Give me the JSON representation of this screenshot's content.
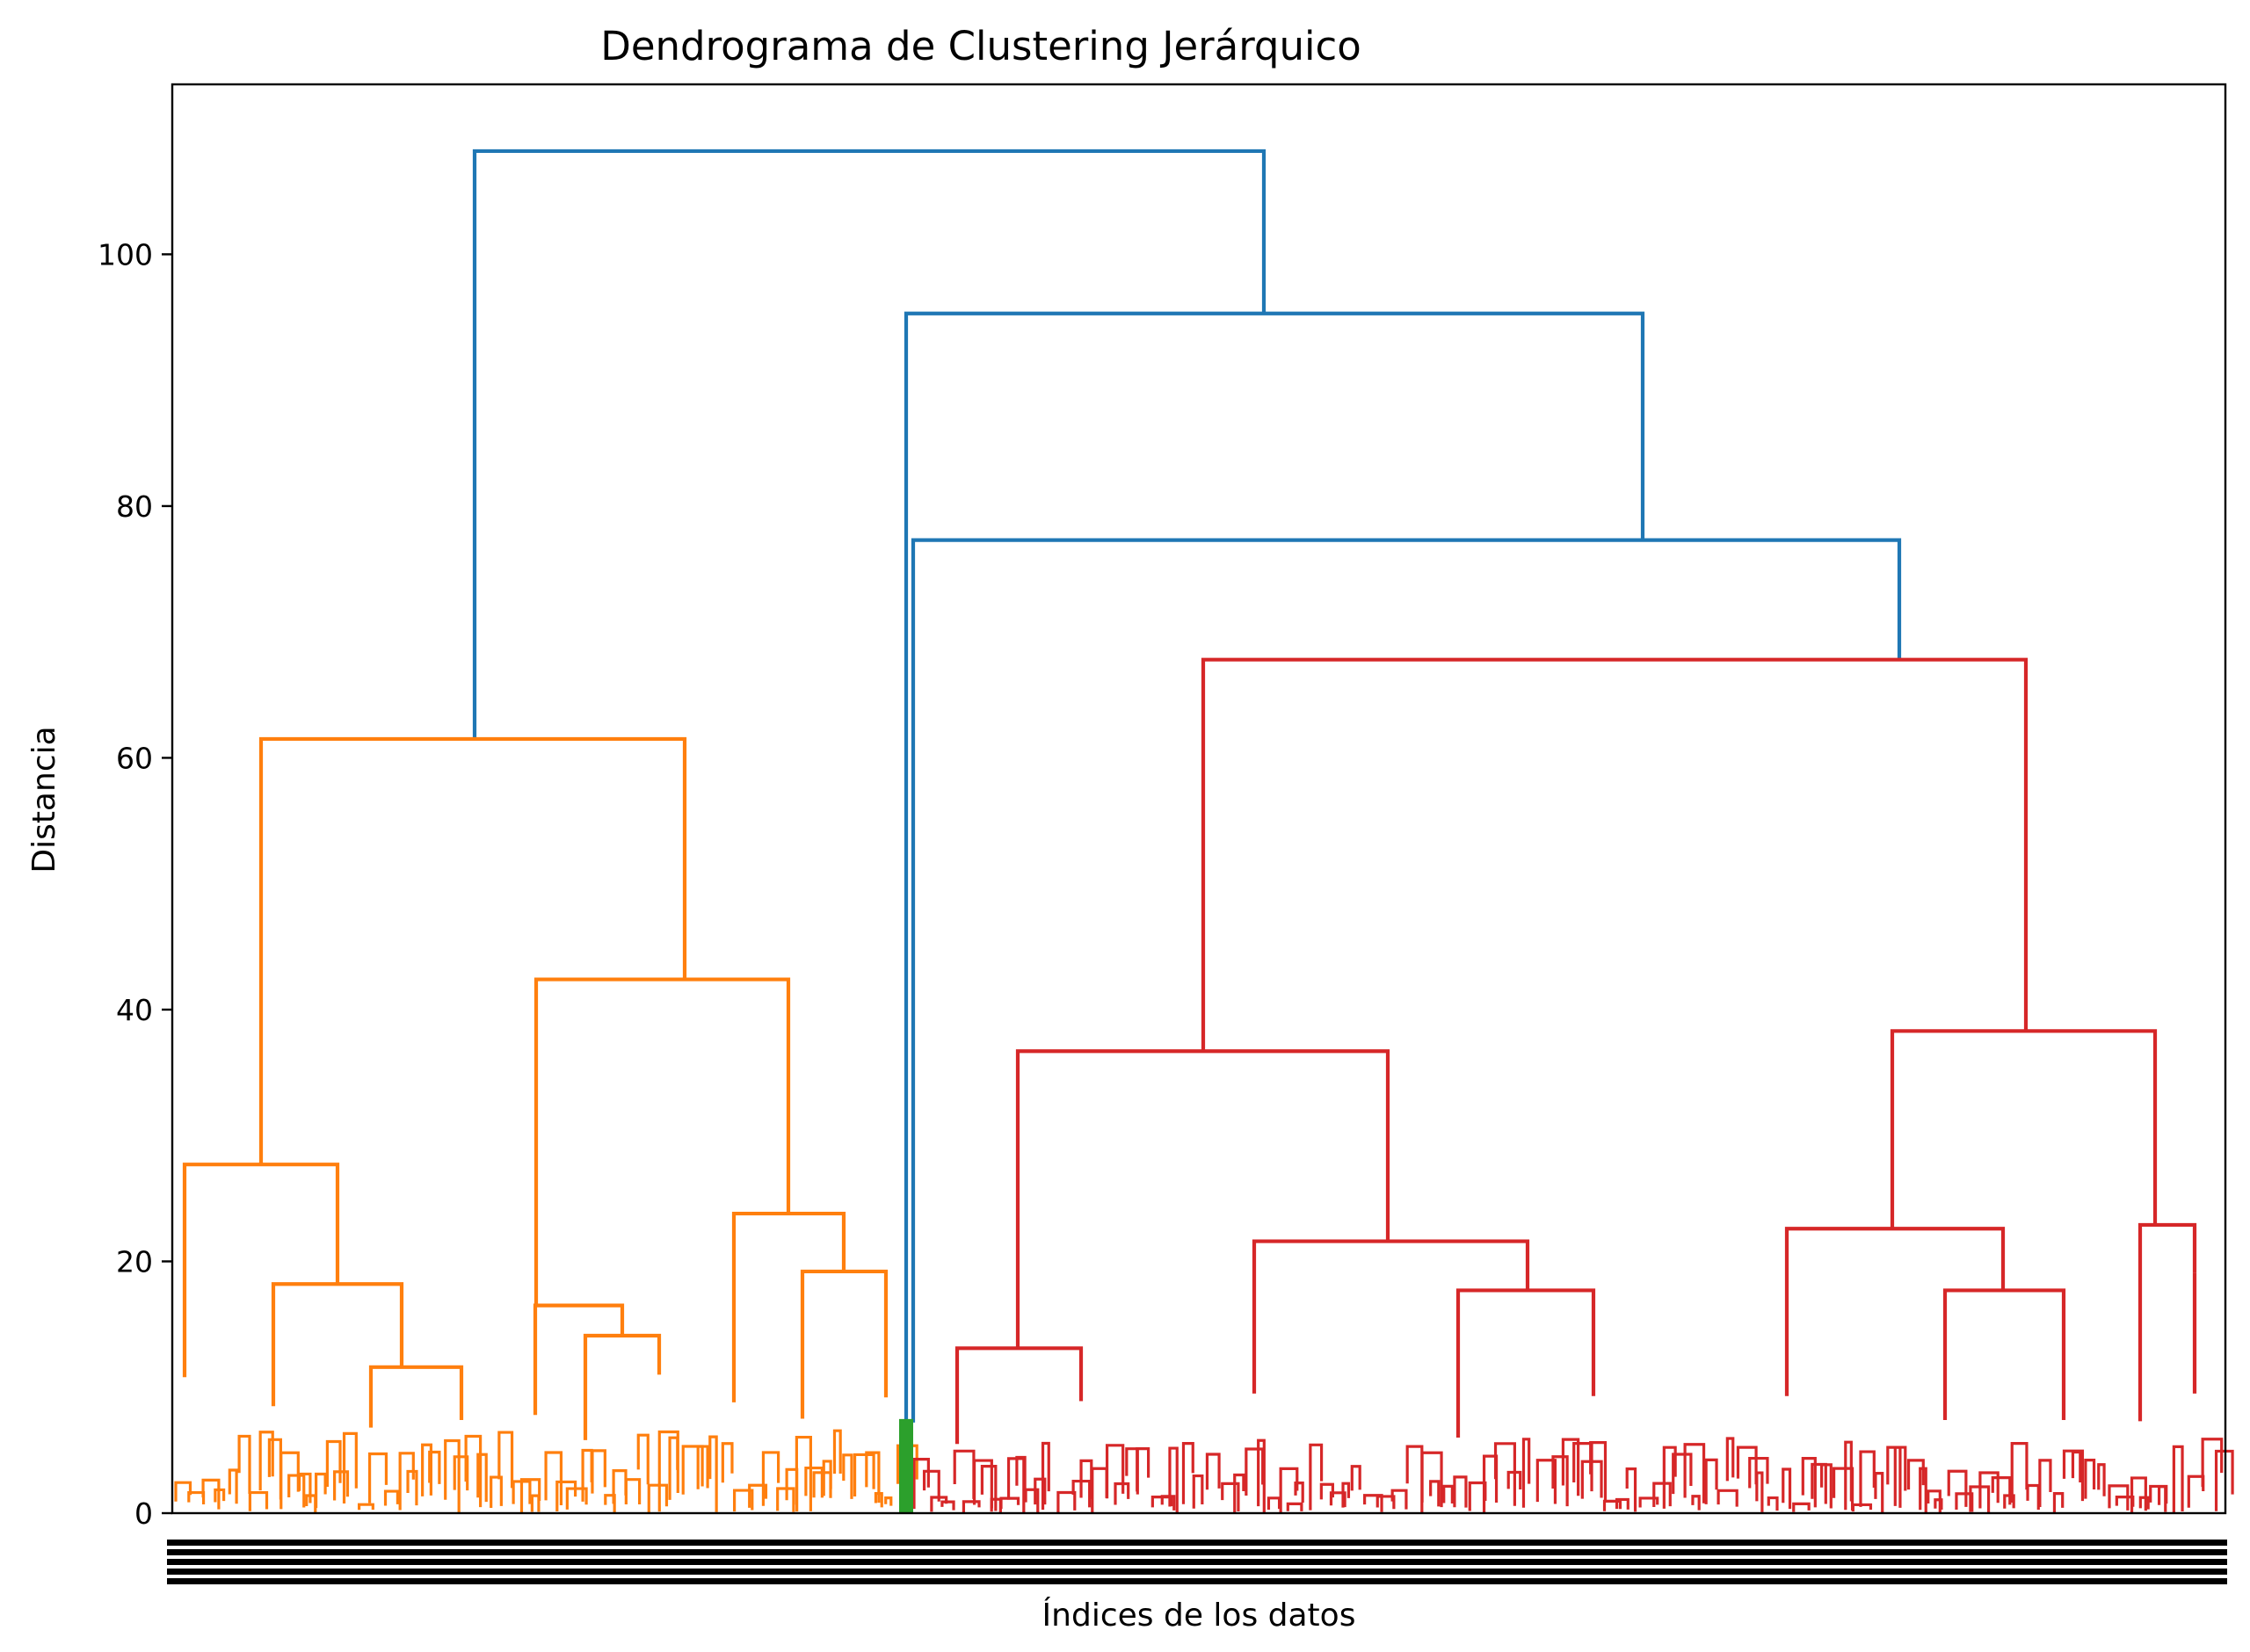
{
  "chart_data": {
    "type": "dendrogram",
    "title": "Dendrograma de Clustering Jerárquico",
    "xlabel": "Índices de los datos",
    "ylabel": "Distancia",
    "ylim": [
      0,
      113.5
    ],
    "yticks": [
      0,
      20,
      40,
      60,
      80,
      100
    ],
    "grid": false,
    "colors": {
      "orange": "#ff7f0e",
      "green": "#2ca02c",
      "red": "#d62728",
      "blue": "#1f77b4"
    },
    "major_links": [
      {
        "color": "blue",
        "heights": [
          61.5,
          108.2,
          95.3
        ],
        "merge": 108.2
      },
      {
        "color": "blue",
        "heights": [
          7.2,
          95.3,
          77.3
        ],
        "merge": 95.3
      },
      {
        "color": "blue",
        "heights": [
          7.2,
          77.3,
          67.8
        ],
        "merge": 77.3
      },
      {
        "color": "orange",
        "heights": [
          27.7,
          61.5,
          42.4
        ],
        "merge": 61.5
      },
      {
        "color": "orange",
        "heights": [
          10.8,
          27.7,
          18.2
        ],
        "merge": 27.7
      },
      {
        "color": "orange",
        "heights": [
          8.5,
          18.2,
          11.6
        ],
        "merge": 18.2
      },
      {
        "color": "orange",
        "heights": [
          6.8,
          11.6,
          7.4
        ],
        "merge": 11.6
      },
      {
        "color": "orange",
        "heights": [
          16.5,
          42.4,
          23.8
        ],
        "merge": 42.4
      },
      {
        "color": "orange",
        "heights": [
          7.8,
          16.5,
          14.1
        ],
        "merge": 16.5
      },
      {
        "color": "orange",
        "heights": [
          5.8,
          14.1,
          11.0
        ],
        "merge": 14.1
      },
      {
        "color": "orange",
        "heights": [
          8.8,
          23.8,
          19.2
        ],
        "merge": 23.8
      },
      {
        "color": "orange",
        "heights": [
          7.5,
          19.2,
          9.2
        ],
        "merge": 19.2
      },
      {
        "color": "red",
        "heights": [
          36.7,
          67.8,
          38.3
        ],
        "merge": 67.8
      },
      {
        "color": "red",
        "heights": [
          13.1,
          36.7,
          21.6
        ],
        "merge": 36.7
      },
      {
        "color": "red",
        "heights": [
          5.5,
          13.1,
          8.9
        ],
        "merge": 13.1
      },
      {
        "color": "red",
        "heights": [
          9.5,
          21.6,
          17.7
        ],
        "merge": 21.6
      },
      {
        "color": "red",
        "heights": [
          6.0,
          17.7,
          9.3
        ],
        "merge": 17.7
      },
      {
        "color": "red",
        "heights": [
          22.6,
          38.3,
          22.9
        ],
        "merge": 38.3
      },
      {
        "color": "red",
        "heights": [
          9.3,
          22.6,
          17.7
        ],
        "merge": 22.6
      },
      {
        "color": "red",
        "heights": [
          7.4,
          17.7,
          7.4
        ],
        "merge": 17.7
      },
      {
        "color": "red",
        "heights": [
          7.3,
          22.9,
          19.1
        ],
        "merge": 22.9
      },
      {
        "color": "red",
        "heights": [
          9.5,
          19.1,
          9.5
        ],
        "merge": 19.1
      }
    ]
  }
}
